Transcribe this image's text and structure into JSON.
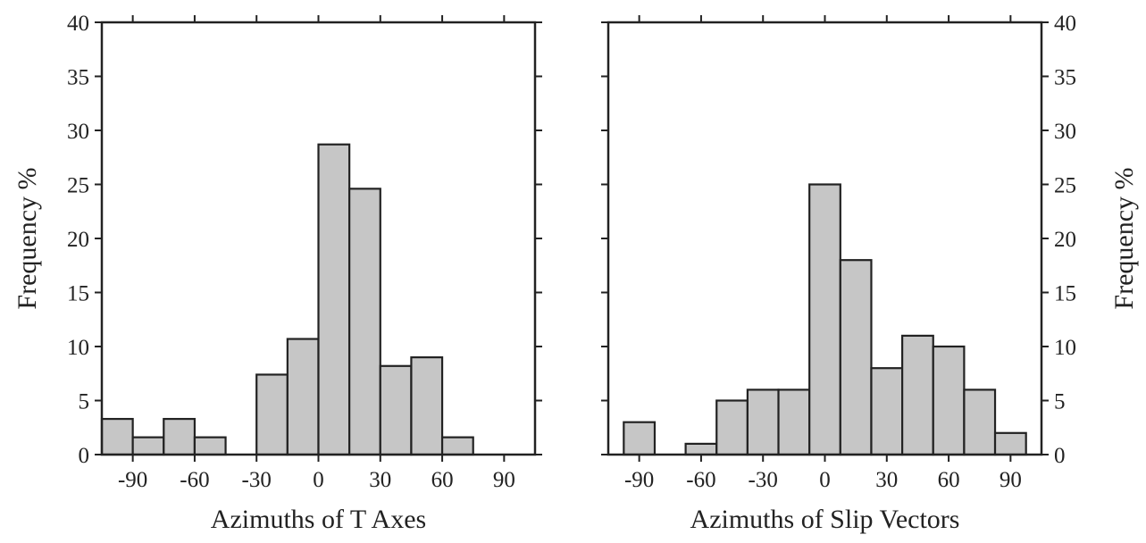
{
  "chart_data": [
    {
      "type": "bar",
      "subtype": "histogram",
      "xlabel": "Azimuths of T Axes",
      "ylabel": "Frequency %",
      "ylabel_side": "left",
      "ylim": [
        0,
        40
      ],
      "yticks": [
        0,
        5,
        10,
        15,
        20,
        25,
        30,
        35,
        40
      ],
      "xlim": [
        -105,
        105
      ],
      "xticks": [
        -90,
        -60,
        -30,
        0,
        30,
        60,
        90
      ],
      "bin_width": 15,
      "bars": [
        {
          "x": -105,
          "value": 3.3
        },
        {
          "x": -90,
          "value": 1.6
        },
        {
          "x": -75,
          "value": 3.3
        },
        {
          "x": -60,
          "value": 1.6
        },
        {
          "x": -45,
          "value": 0
        },
        {
          "x": -30,
          "value": 7.4
        },
        {
          "x": -15,
          "value": 10.7
        },
        {
          "x": 0,
          "value": 28.7
        },
        {
          "x": 15,
          "value": 24.6
        },
        {
          "x": 30,
          "value": 8.2
        },
        {
          "x": 45,
          "value": 9.0
        },
        {
          "x": 60,
          "value": 1.6
        },
        {
          "x": 75,
          "value": 0
        },
        {
          "x": 90,
          "value": 0
        }
      ],
      "bar_color": "#c6c6c6",
      "edge_color": "#222222"
    },
    {
      "type": "bar",
      "subtype": "histogram",
      "xlabel": "Azimuths of Slip Vectors",
      "ylabel": "Frequency %",
      "ylabel_side": "right",
      "ylim": [
        0,
        40
      ],
      "yticks": [
        0,
        5,
        10,
        15,
        20,
        25,
        30,
        35,
        40
      ],
      "xlim": [
        -105,
        105
      ],
      "xticks": [
        -90,
        -60,
        -30,
        0,
        30,
        60,
        90
      ],
      "bin_width": 15,
      "bars": [
        {
          "x": -97.5,
          "value": 3
        },
        {
          "x": -82.5,
          "value": 0
        },
        {
          "x": -67.5,
          "value": 1
        },
        {
          "x": -52.5,
          "value": 5
        },
        {
          "x": -37.5,
          "value": 6
        },
        {
          "x": -22.5,
          "value": 6
        },
        {
          "x": -7.5,
          "value": 25
        },
        {
          "x": 7.5,
          "value": 18
        },
        {
          "x": 22.5,
          "value": 8
        },
        {
          "x": 37.5,
          "value": 11
        },
        {
          "x": 52.5,
          "value": 10
        },
        {
          "x": 67.5,
          "value": 6
        },
        {
          "x": 82.5,
          "value": 2
        }
      ],
      "bar_color": "#c6c6c6",
      "edge_color": "#222222"
    }
  ]
}
